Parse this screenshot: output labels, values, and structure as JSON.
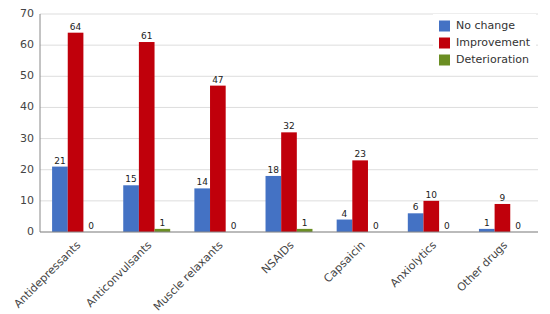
{
  "chart_data": {
    "type": "bar",
    "categories": [
      "Antidepressants",
      "Anticonvulsants",
      "Muscle relaxants",
      "NSAIDs",
      "Capsaicin",
      "Anxiolytics",
      "Other drugs"
    ],
    "series": [
      {
        "name": "No change",
        "color": "#4472c4",
        "values": [
          21,
          15,
          14,
          18,
          4,
          6,
          1
        ]
      },
      {
        "name": "Improvement",
        "color": "#c0000b",
        "values": [
          64,
          61,
          47,
          32,
          23,
          10,
          9
        ]
      },
      {
        "name": "Deterioration",
        "color": "#6b8e23",
        "values": [
          0,
          1,
          0,
          1,
          0,
          0,
          0
        ]
      }
    ],
    "ylim": [
      0,
      70
    ],
    "yticks": [
      0,
      10,
      20,
      30,
      40,
      50,
      60,
      70
    ],
    "grid": true,
    "legend": "upper right",
    "data_labels": true
  }
}
